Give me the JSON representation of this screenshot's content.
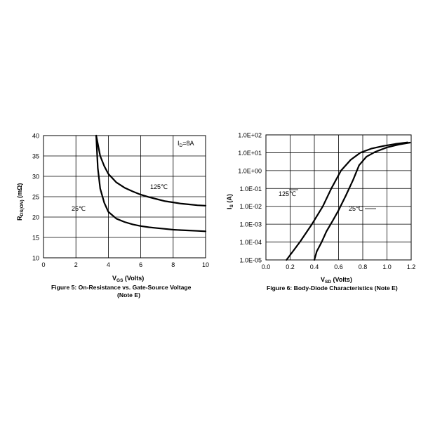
{
  "chart_data": [
    {
      "type": "line",
      "title": "Figure 5: On-Resistance vs. Gate-Source Voltage",
      "title_overflow": "(Note E)",
      "xlabel": {
        "main": "V",
        "sub": "GS",
        "suffix": " (Volts)"
      },
      "ylabel": {
        "main": "R",
        "sub": "DS(ON)",
        "suffix": " (mΩ)"
      },
      "xlim": [
        0,
        10
      ],
      "ylim": [
        10,
        40
      ],
      "xticks": [
        "0",
        "2",
        "4",
        "6",
        "8",
        "10"
      ],
      "yticks": [
        "10",
        "15",
        "20",
        "25",
        "30",
        "35",
        "40"
      ],
      "grid": true,
      "condition": {
        "main": "I",
        "sub": "D",
        "suffix": "=8A"
      },
      "series": [
        {
          "name": "125℃",
          "x": [
            3.25,
            3.35,
            3.5,
            3.75,
            4,
            4.5,
            5,
            5.5,
            6,
            6.5,
            7,
            7.5,
            8,
            8.5,
            9,
            9.5,
            10
          ],
          "y": [
            40,
            38,
            35,
            32.5,
            30.6,
            28.5,
            27.2,
            26.3,
            25.5,
            24.9,
            24.4,
            23.9,
            23.6,
            23.3,
            23.1,
            22.9,
            22.8
          ]
        },
        {
          "name": "25℃",
          "x": [
            3.25,
            3.35,
            3.5,
            3.75,
            4,
            4.5,
            5,
            5.5,
            6,
            6.5,
            7,
            7.5,
            8,
            8.5,
            9,
            9.5,
            10
          ],
          "y": [
            40,
            32,
            27,
            23.5,
            21.3,
            19.6,
            18.8,
            18.2,
            17.8,
            17.5,
            17.3,
            17.1,
            16.9,
            16.8,
            16.7,
            16.6,
            16.5
          ]
        }
      ]
    },
    {
      "type": "line",
      "title": "Figure 6: Body-Diode Characteristics (Note E)",
      "xlabel": {
        "main": "V",
        "sub": "SD",
        "suffix": " (Volts)"
      },
      "ylabel": {
        "main": "I",
        "sub": "S",
        "suffix": " (A)"
      },
      "xlim": [
        0,
        1.2
      ],
      "ylim": [
        1e-05,
        100
      ],
      "yscale": "log",
      "xticks": [
        "0.0",
        "0.2",
        "0.4",
        "0.6",
        "0.8",
        "1.0",
        "1.2"
      ],
      "yticks": [
        "1.0E-05",
        "1.0E-04",
        "1.0E-03",
        "1.0E-02",
        "1.0E-01",
        "1.0E+00",
        "1.0E+01",
        "1.0E+02"
      ],
      "grid": true,
      "series": [
        {
          "name": "125℃",
          "x": [
            0.17,
            0.28,
            0.38,
            0.47,
            0.54,
            0.62,
            0.7,
            0.78,
            0.87,
            0.97,
            1.07,
            1.17
          ],
          "y": [
            1e-05,
            0.0001,
            0.001,
            0.01,
            0.1,
            1,
            4,
            10,
            17,
            24,
            31,
            38
          ]
        },
        {
          "name": "25℃",
          "x": [
            0.4,
            0.42,
            0.46,
            0.5,
            0.55,
            0.6,
            0.66,
            0.72,
            0.77,
            0.83,
            0.9,
            1.0,
            1.1,
            1.19
          ],
          "y": [
            1e-05,
            3e-05,
            0.0001,
            0.0004,
            0.0015,
            0.006,
            0.04,
            0.3,
            2,
            6,
            11,
            20,
            29,
            37
          ]
        }
      ]
    }
  ]
}
